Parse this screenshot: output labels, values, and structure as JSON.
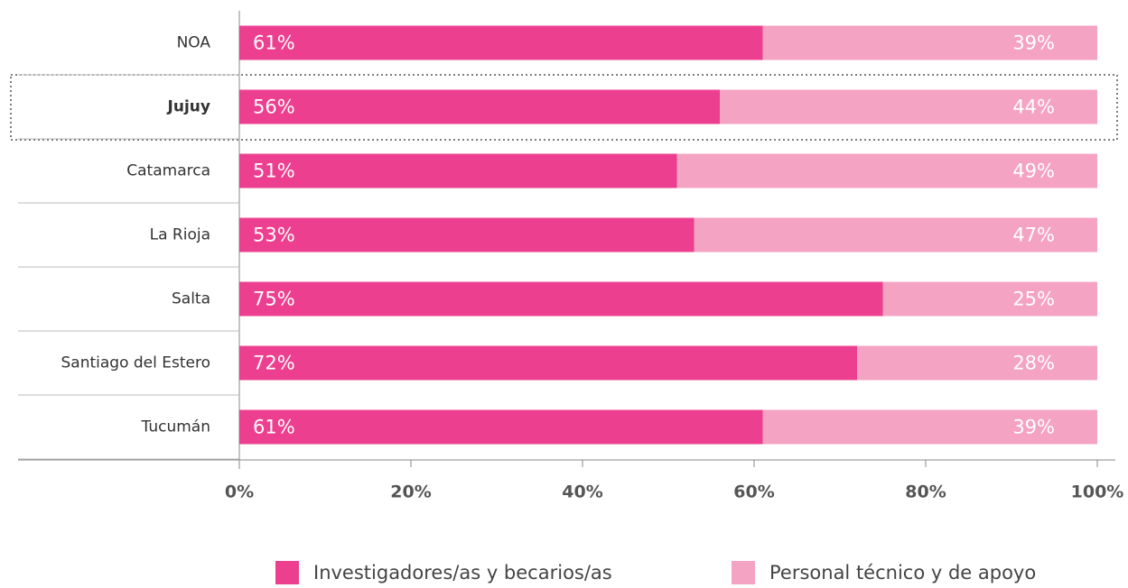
{
  "chart_data": {
    "type": "stacked-bar-horizontal",
    "categories": [
      "NOA",
      "Jujuy",
      "Catamarca",
      "La Rioja",
      "Salta",
      "Santiago del Estero",
      "Tucumán"
    ],
    "series": [
      {
        "name": "Investigadores/as y becarios/as",
        "color": "#ec3f8f",
        "values": [
          61,
          56,
          51,
          53,
          75,
          72,
          61
        ],
        "value_labels": [
          "61%",
          "56%",
          "51%",
          "53%",
          "75%",
          "72%",
          "61%"
        ]
      },
      {
        "name": "Personal técnico y de apoyo",
        "color": "#f4a3c2",
        "values": [
          39,
          44,
          49,
          47,
          25,
          28,
          39
        ],
        "value_labels": [
          "39%",
          "44%",
          "49%",
          "47%",
          "25%",
          "28%",
          "39%"
        ]
      }
    ],
    "xlim": [
      0,
      100
    ],
    "xticks": [
      {
        "value": 0,
        "label": "0%"
      },
      {
        "value": 20,
        "label": "20%"
      },
      {
        "value": 40,
        "label": "40%"
      },
      {
        "value": 60,
        "label": "60%"
      },
      {
        "value": 80,
        "label": "80%"
      },
      {
        "value": 100,
        "label": "100%"
      }
    ]
  }
}
